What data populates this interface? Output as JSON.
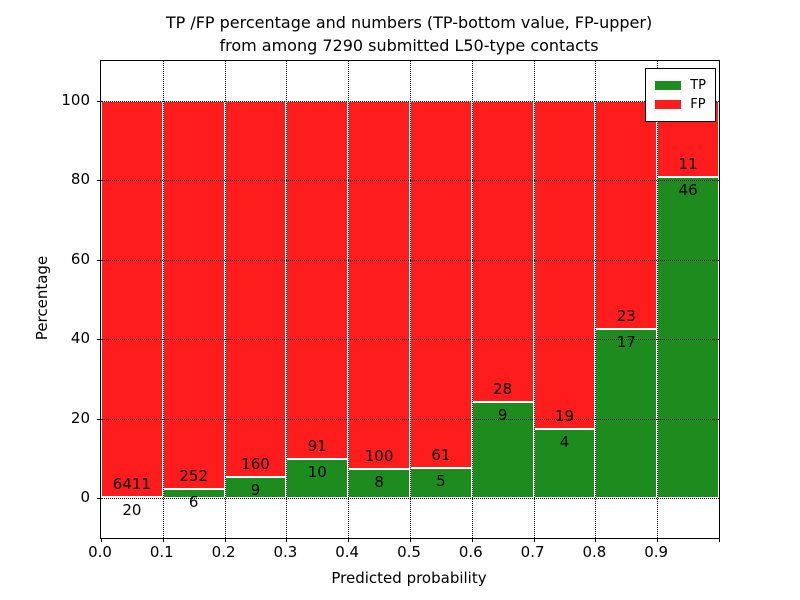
{
  "title": {
    "line1": "TP /FP percentage and numbers (TP-bottom value, FP-upper)",
    "line2": "from among 7290 submitted L50-type contacts"
  },
  "axes": {
    "xlabel": "Predicted probability",
    "ylabel": "Percentage",
    "xticks": [
      "0.0",
      "0.1",
      "0.2",
      "0.3",
      "0.4",
      "0.5",
      "0.6",
      "0.7",
      "0.8",
      "0.9"
    ],
    "yticks": [
      "0",
      "20",
      "40",
      "60",
      "80",
      "100"
    ],
    "xlim": [
      0.0,
      1.0
    ],
    "ylim": [
      0,
      100
    ],
    "grid": "dotted"
  },
  "legend": {
    "position": "top-right",
    "items": [
      {
        "label": "TP",
        "color": "#1e8b1e"
      },
      {
        "label": "FP",
        "color": "#ff1c1c"
      }
    ]
  },
  "colors": {
    "tp": "#1e8b1e",
    "fp": "#ff1c1c",
    "grid": "#000000",
    "text": "#000000"
  },
  "chart_data": {
    "type": "bar",
    "stacked": true,
    "normalized_to": 100,
    "title": "TP /FP percentage and numbers (TP-bottom value, FP-upper) from among 7290 submitted L50-type contacts",
    "xlabel": "Predicted probability",
    "ylabel": "Percentage",
    "bin_edges": [
      0.0,
      0.1,
      0.2,
      0.3,
      0.4,
      0.5,
      0.6,
      0.7,
      0.8,
      0.9,
      1.0
    ],
    "categories": [
      "0.0-0.1",
      "0.1-0.2",
      "0.2-0.3",
      "0.3-0.4",
      "0.4-0.5",
      "0.5-0.6",
      "0.6-0.7",
      "0.7-0.8",
      "0.8-0.9",
      "0.9-1.0"
    ],
    "series": [
      {
        "name": "TP",
        "color": "#1e8b1e",
        "values": [
          20,
          6,
          9,
          10,
          8,
          5,
          9,
          4,
          17,
          46
        ]
      },
      {
        "name": "FP",
        "color": "#ff1c1c",
        "values": [
          6411,
          252,
          160,
          91,
          100,
          61,
          28,
          19,
          23,
          11
        ]
      }
    ],
    "tp_percent_approx": [
      0.31,
      2.33,
      5.33,
      9.9,
      7.41,
      7.58,
      24.32,
      17.39,
      42.5,
      80.7
    ],
    "total_contacts": 7290
  }
}
